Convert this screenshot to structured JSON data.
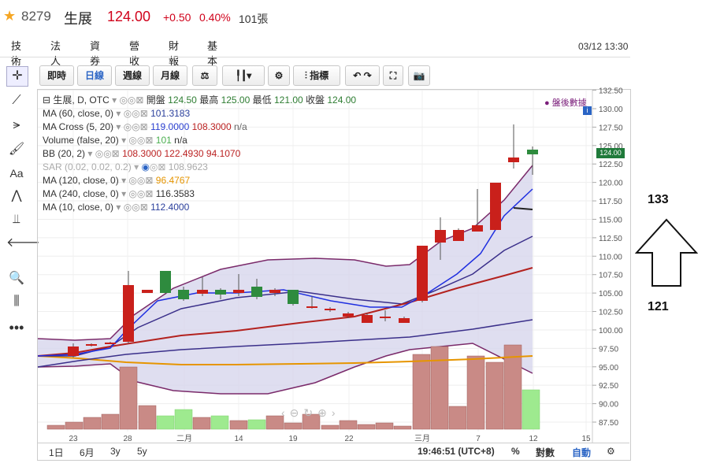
{
  "header": {
    "star_icon": "star-icon",
    "code": "8279",
    "name": "生展",
    "price": "124.00",
    "change": "+0.50",
    "change_pct": "0.40%",
    "volume": "101張"
  },
  "tabs": [
    {
      "label": "技術",
      "active": true
    },
    {
      "label": "法人",
      "active": false
    },
    {
      "label": "資券",
      "active": false
    },
    {
      "label": "營收",
      "active": false
    },
    {
      "label": "財報",
      "active": false
    },
    {
      "label": "基本",
      "active": false
    }
  ],
  "datetime": "03/12 13:30",
  "toolbar": {
    "intraday": "即時",
    "daily": "日線",
    "weekly": "週線",
    "monthly": "月線",
    "indicator": "指標"
  },
  "legend": {
    "title": "生展, D, OTC",
    "open_label": "開盤",
    "open": "124.50",
    "high_label": "最高",
    "high": "125.00",
    "low_label": "最低",
    "low": "121.00",
    "close_label": "收盤",
    "close": "124.00",
    "after_hours": "● 盤後數據",
    "ma60": "MA (60, close, 0)",
    "ma60_val": "101.3183",
    "macross": "MA Cross (5, 20)",
    "macross_v1": "119.0000",
    "macross_v2": "108.3000",
    "macross_v3": "n/a",
    "volume": "Volume (false, 20)",
    "volume_v1": "101",
    "volume_v2": "n/a",
    "bb": "BB (20, 2)",
    "bb_v1": "108.3000",
    "bb_v2": "122.4930",
    "bb_v3": "94.1070",
    "sar": "SAR (0.02, 0.02, 0.2)",
    "sar_val": "108.9623",
    "ma120": "MA (120, close, 0)",
    "ma120_val": "96.4767",
    "ma240": "MA (240, close, 0)",
    "ma240_val": "116.3583",
    "ma10": "MA (10, close, 0)",
    "ma10_val": "112.4000"
  },
  "bottom": {
    "r1d": "1日",
    "r6m": "6月",
    "r3y": "3y",
    "r5y": "5y",
    "clock": "19:46:51 (UTC+8)",
    "percent": "%",
    "log": "對數",
    "auto": "自動"
  },
  "annotation": {
    "top": "133",
    "bottom": "121"
  },
  "chart_data": {
    "type": "candlestick",
    "y_ticks": [
      "132.50",
      "130.00",
      "127.50",
      "125.00",
      "122.50",
      "120.00",
      "117.50",
      "115.00",
      "112.50",
      "110.00",
      "107.50",
      "105.00",
      "102.50",
      "100.00",
      "97.50",
      "95.00",
      "92.50",
      "90.00",
      "87.50"
    ],
    "x_ticks": [
      "23",
      "28",
      "二月",
      "14",
      "19",
      "22",
      "三月",
      "7",
      "12",
      "15"
    ],
    "last_price_label": "124.00",
    "ylim": [
      86,
      133
    ]
  }
}
